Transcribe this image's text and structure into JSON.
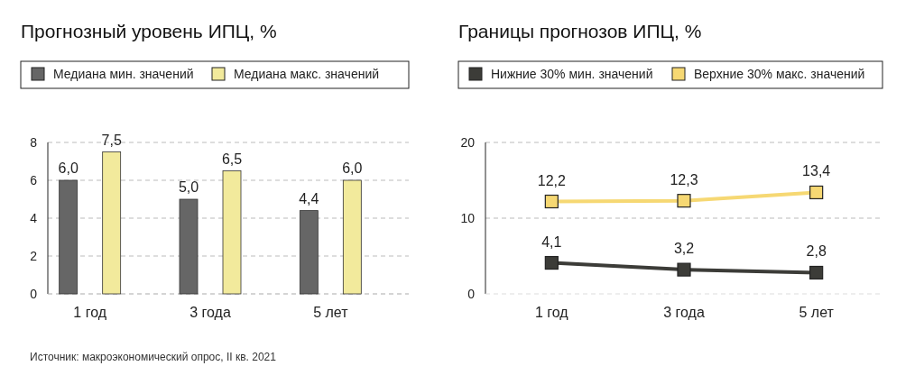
{
  "chart_data": [
    {
      "type": "bar",
      "title": "Прогнозный уровень ИПЦ, %",
      "categories": [
        "1 год",
        "3 года",
        "5 лет"
      ],
      "series": [
        {
          "name": "Медиана мин. значений",
          "color": "#666666",
          "values": [
            6.0,
            5.0,
            4.4
          ],
          "value_labels": [
            "6,0",
            "5,0",
            "4,4"
          ]
        },
        {
          "name": "Медиана макс. значений",
          "color": "#f2ea9c",
          "values": [
            7.5,
            6.5,
            6.0
          ],
          "value_labels": [
            "7,5",
            "6,5",
            "6,0"
          ]
        }
      ],
      "ylim": [
        0,
        8
      ],
      "yticks": [
        0,
        2,
        4,
        6,
        8
      ],
      "grid": "y",
      "legend": "top",
      "annotations": [
        "Источник: макроэкономический опрос, II кв. 2021"
      ]
    },
    {
      "type": "line",
      "title": "Границы прогнозов ИПЦ, %",
      "categories": [
        "1 год",
        "3 года",
        "5 лет"
      ],
      "series": [
        {
          "name": "Нижние 30% мин. значений",
          "color": "#3c3c38",
          "values": [
            4.1,
            3.2,
            2.8
          ],
          "value_labels": [
            "4,1",
            "3,2",
            "2,8"
          ]
        },
        {
          "name": "Верхние 30% макс. значений",
          "color": "#f6d873",
          "values": [
            12.2,
            12.3,
            13.4
          ],
          "value_labels": [
            "12,2",
            "12,3",
            "13,4"
          ]
        }
      ],
      "ylim": [
        0,
        20
      ],
      "yticks": [
        0,
        10,
        20
      ],
      "grid": "y",
      "legend": "top",
      "marker": "square"
    }
  ]
}
